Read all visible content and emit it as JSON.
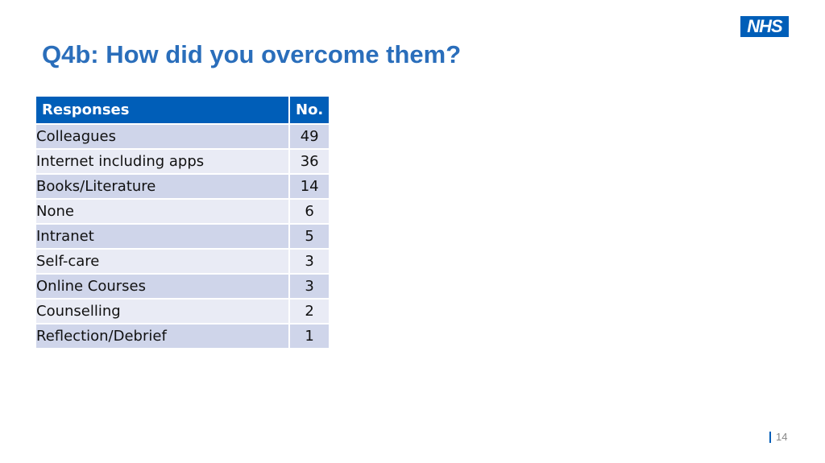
{
  "header": {
    "title": "Q4b: How did you overcome them?",
    "logo": "NHS"
  },
  "table": {
    "columns": [
      "Responses",
      "No."
    ],
    "rows": [
      [
        "Colleagues",
        49
      ],
      [
        "Internet including apps",
        36
      ],
      [
        "Books/Literature",
        14
      ],
      [
        "None",
        6
      ],
      [
        "Intranet",
        5
      ],
      [
        "Self-care",
        3
      ],
      [
        "Online Courses",
        3
      ],
      [
        "Counselling",
        2
      ],
      [
        "Reflection/Debrief",
        1
      ]
    ]
  },
  "footer": {
    "page": "14"
  }
}
